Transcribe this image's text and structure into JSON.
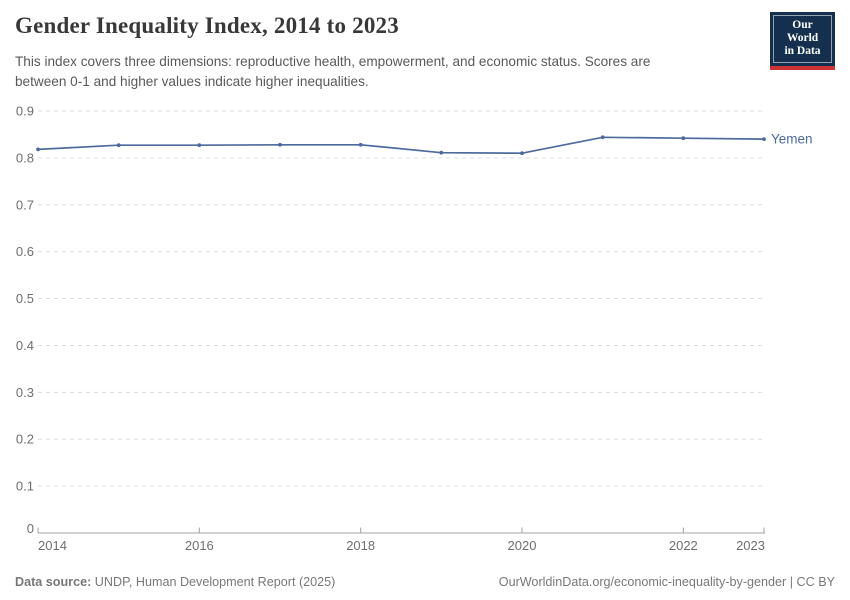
{
  "header": {
    "title": "Gender Inequality Index, 2014 to 2023",
    "subtitle": "This index covers three dimensions: reproductive health, empowerment, and economic status. Scores are\nbetween 0-1 and higher values indicate higher inequalities."
  },
  "logo": {
    "line1": "Our World",
    "line2": "in Data"
  },
  "chart_data": {
    "type": "line",
    "title": "Gender Inequality Index, 2014 to 2023",
    "x": [
      2014,
      2015,
      2016,
      2017,
      2018,
      2019,
      2020,
      2021,
      2022,
      2023
    ],
    "series": [
      {
        "name": "Yemen",
        "color": "#4C6A9C",
        "values": [
          0.818,
          0.827,
          0.827,
          0.828,
          0.828,
          0.811,
          0.81,
          0.844,
          0.842,
          0.84
        ]
      }
    ],
    "xlabel": "",
    "ylabel": "",
    "ylim": [
      0,
      0.9
    ],
    "yticks": [
      0,
      0.1,
      0.2,
      0.3,
      0.4,
      0.5,
      0.6,
      0.7,
      0.8,
      0.9
    ],
    "xticks": [
      2014,
      2016,
      2018,
      2020,
      2022,
      2023
    ],
    "grid": "horizontal-dashed",
    "legend_position": "end-of-line",
    "markers": true
  },
  "footer": {
    "data_source_label": "Data source:",
    "data_source_value": "UNDP, Human Development Report (2025)",
    "citation": "OurWorldinData.org/economic-inequality-by-gender | CC BY"
  },
  "colors": {
    "line": "#4C6A9C",
    "grid": "#dcdcdc",
    "axis": "#a3a3a3",
    "tick_label": "#6e6e6e",
    "title": "#383838",
    "subtitle": "#595959",
    "footer": "#787878",
    "logo_bg": "#15304f",
    "logo_bar": "#cb3335"
  }
}
